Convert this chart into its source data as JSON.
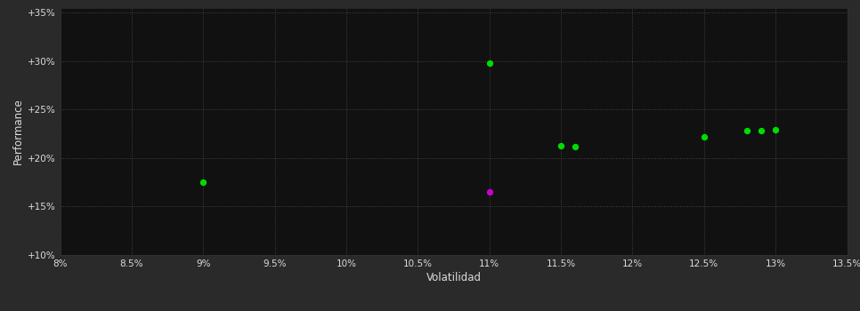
{
  "background_color": "#2a2a2a",
  "plot_bg_color": "#111111",
  "grid_color": "#444444",
  "text_color": "#dddddd",
  "xlabel": "Volatilidad",
  "ylabel": "Performance",
  "xlim": [
    0.08,
    0.135
  ],
  "ylim": [
    0.1,
    0.355
  ],
  "xticks": [
    0.08,
    0.085,
    0.09,
    0.095,
    0.1,
    0.105,
    0.11,
    0.115,
    0.12,
    0.125,
    0.13,
    0.135
  ],
  "yticks": [
    0.1,
    0.15,
    0.2,
    0.25,
    0.3,
    0.35
  ],
  "ytick_labels": [
    "+10%",
    "+15%",
    "+20%",
    "+25%",
    "+30%",
    "+35%"
  ],
  "xtick_labels": [
    "8%",
    "8.5%",
    "9%",
    "9.5%",
    "10%",
    "10.5%",
    "11%",
    "11.5%",
    "12%",
    "12.5%",
    "13%",
    "13.5%"
  ],
  "green_points": [
    [
      0.09,
      0.175
    ],
    [
      0.11,
      0.298
    ],
    [
      0.115,
      0.213
    ],
    [
      0.116,
      0.212
    ],
    [
      0.125,
      0.222
    ],
    [
      0.128,
      0.228
    ],
    [
      0.129,
      0.228
    ],
    [
      0.13,
      0.229
    ]
  ],
  "magenta_points": [
    [
      0.11,
      0.165
    ]
  ],
  "green_color": "#00dd00",
  "magenta_color": "#cc00cc",
  "marker_size": 28
}
